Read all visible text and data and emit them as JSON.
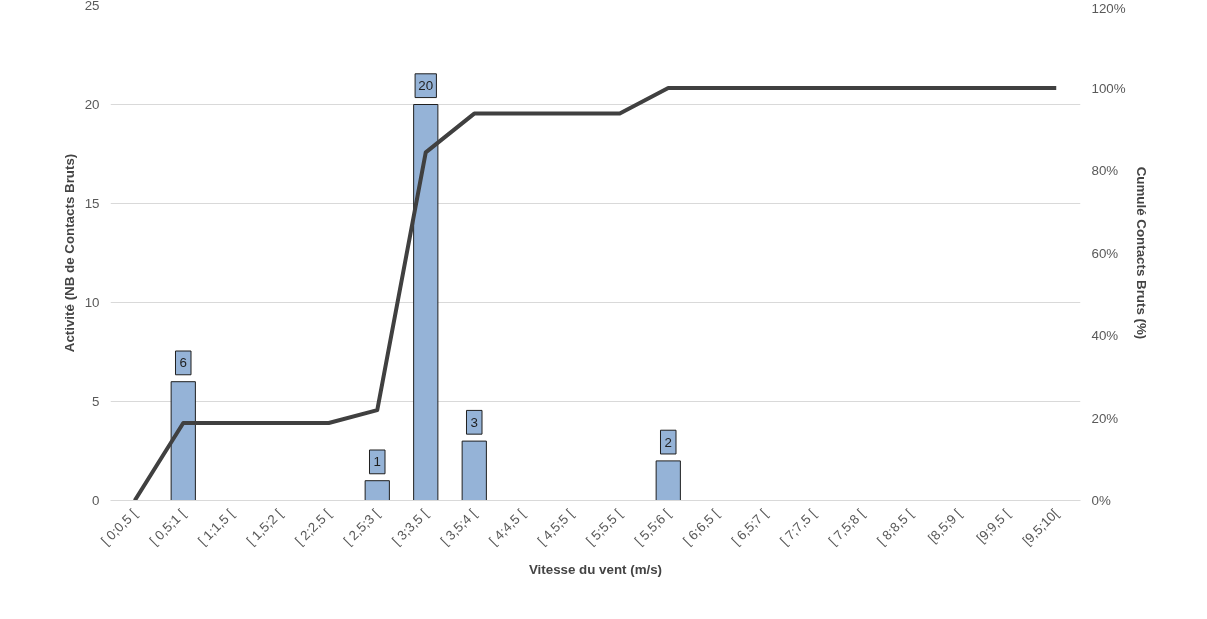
{
  "chart_data": {
    "type": "bar",
    "xlabel": "Vitesse du vent (m/s)",
    "ylabel": "Activité (NB de Contacts Bruts)",
    "y2label": "Cumulé Contacts Bruts (%)",
    "categories": [
      "[ 0;0,5 [",
      "[ 0,5;1 [",
      "[ 1;1,5 [",
      "[ 1,5;2 [",
      "[ 2;2,5 [",
      "[ 2,5;3 [",
      "[ 3;3,5 [",
      "[ 3,5;4 [",
      "[ 4;4,5 [",
      "[ 4,5;5 [",
      "[ 5;5,5 [",
      "[ 5,5;6 [",
      "[ 6;6,5 [",
      "[ 6,5;7 [",
      "[ 7;7,5 [",
      "[ 7,5;8 [",
      "[ 8;8,5 [",
      "[8,5;9 [",
      "[9;9,5 [",
      "[9,5;10["
    ],
    "series": [
      {
        "color": "#95b3d7",
        "values": [
          0,
          6,
          0,
          0,
          0,
          1,
          20,
          3,
          0,
          0,
          0,
          2,
          0,
          0,
          0,
          0,
          0,
          0,
          0,
          0
        ],
        "value_labels": [
          null,
          "6",
          null,
          null,
          null,
          "1",
          "20",
          "3",
          null,
          null,
          null,
          "2",
          null,
          null,
          null,
          null,
          null,
          null,
          null,
          null
        ]
      },
      {
        "type": "line",
        "axis": "y2",
        "color": "#404040",
        "values": [
          0,
          18.8,
          18.8,
          18.8,
          18.8,
          21.9,
          84.4,
          93.8,
          93.8,
          93.8,
          93.8,
          100,
          100,
          100,
          100,
          100,
          100,
          100,
          100,
          100
        ]
      }
    ],
    "ylim": [
      0,
      25
    ],
    "yticks": [
      0,
      5,
      10,
      15,
      20,
      25
    ],
    "y2lim": [
      0,
      120
    ],
    "y2ticks": [
      {
        "value": 0,
        "label": "0%"
      },
      {
        "value": 20,
        "label": "20%"
      },
      {
        "value": 40,
        "label": "40%"
      },
      {
        "value": 60,
        "label": "60%"
      },
      {
        "value": 80,
        "label": "80%"
      },
      {
        "value": 100,
        "label": "100%"
      },
      {
        "value": 120,
        "label": "120%"
      }
    ],
    "grid": "y",
    "marker": "none",
    "line_style": "solid"
  }
}
